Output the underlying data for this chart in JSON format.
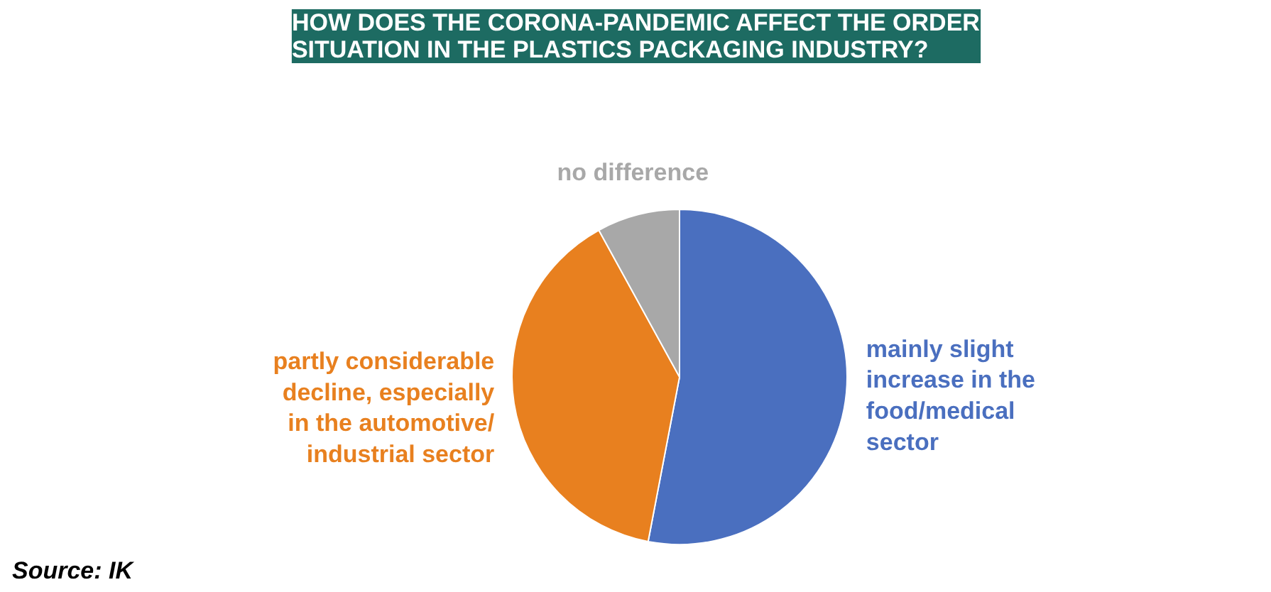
{
  "chart_data": {
    "type": "pie",
    "title": "HOW DOES THE CORONA-PANDEMIC AFFECT THE ORDER\nSITUATION IN THE PLASTICS PACKAGING INDUSTRY?",
    "categories": [
      "mainly slight\nincrease in the\nfood/medical\nsector",
      "partly considerable\ndecline, especially\nin the automotive/\nindustrial sector",
      "no difference"
    ],
    "values": [
      53,
      39,
      8
    ],
    "colors": [
      "#4a6fbf",
      "#e8801f",
      "#a8a8a8"
    ],
    "annotations": [
      "Source: IK"
    ]
  }
}
